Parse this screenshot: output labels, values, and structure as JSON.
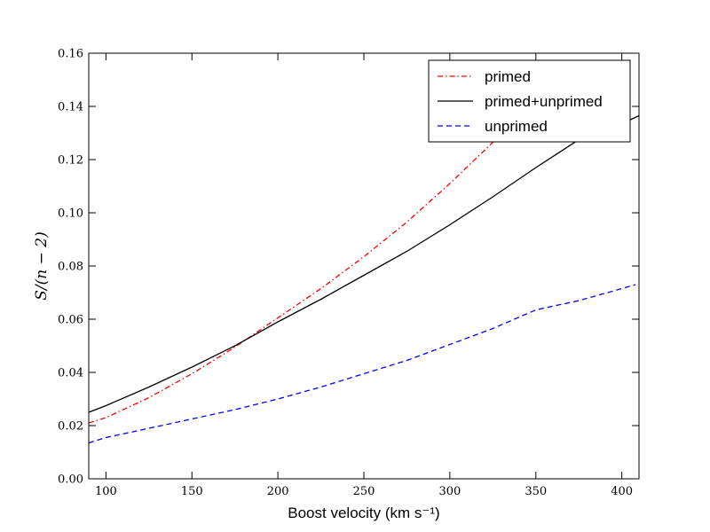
{
  "chart_data": {
    "type": "line",
    "xlabel": "Boost velocity (km s⁻¹)",
    "ylabel": "S/(n − 2)",
    "xlim": [
      90,
      410
    ],
    "ylim": [
      0.0,
      0.16
    ],
    "xticks": [
      100,
      150,
      200,
      250,
      300,
      350,
      400
    ],
    "xtick_labels": [
      "100",
      "150",
      "200",
      "250",
      "300",
      "350",
      "400"
    ],
    "yticks": [
      0.0,
      0.02,
      0.04,
      0.06,
      0.08,
      0.1,
      0.12,
      0.14,
      0.16
    ],
    "ytick_labels": [
      "0.00",
      "0.02",
      "0.04",
      "0.06",
      "0.08",
      "0.10",
      "0.12",
      "0.14",
      "0.16"
    ],
    "grid": false,
    "legend_position": "top-right",
    "series": [
      {
        "name": "primed",
        "color": "#ff0000",
        "dash": "dashdot",
        "x": [
          90,
          100,
          125,
          150,
          175,
          200,
          225,
          250,
          275,
          300,
          325,
          350,
          375,
          400,
          405
        ],
        "y": [
          0.021,
          0.023,
          0.0305,
          0.0395,
          0.0495,
          0.0605,
          0.0715,
          0.0835,
          0.0965,
          0.111,
          0.1265,
          0.1435,
          0.1525,
          0.1555,
          0.1575
        ]
      },
      {
        "name": "primed+unprimed",
        "color": "#000000",
        "dash": "solid",
        "x": [
          90,
          100,
          125,
          150,
          175,
          200,
          225,
          250,
          275,
          300,
          325,
          350,
          375,
          400,
          410
        ],
        "y": [
          0.025,
          0.0275,
          0.0345,
          0.042,
          0.05,
          0.059,
          0.0675,
          0.0765,
          0.0855,
          0.0955,
          0.106,
          0.117,
          0.1275,
          0.1335,
          0.1365
        ]
      },
      {
        "name": "unprimed",
        "color": "#0000ff",
        "dash": "dashed",
        "x": [
          90,
          100,
          125,
          150,
          175,
          200,
          225,
          250,
          275,
          300,
          325,
          350,
          375,
          400,
          408
        ],
        "y": [
          0.0135,
          0.0155,
          0.019,
          0.0225,
          0.026,
          0.03,
          0.0345,
          0.0395,
          0.0445,
          0.0505,
          0.0565,
          0.0635,
          0.067,
          0.0715,
          0.073
        ]
      }
    ]
  }
}
